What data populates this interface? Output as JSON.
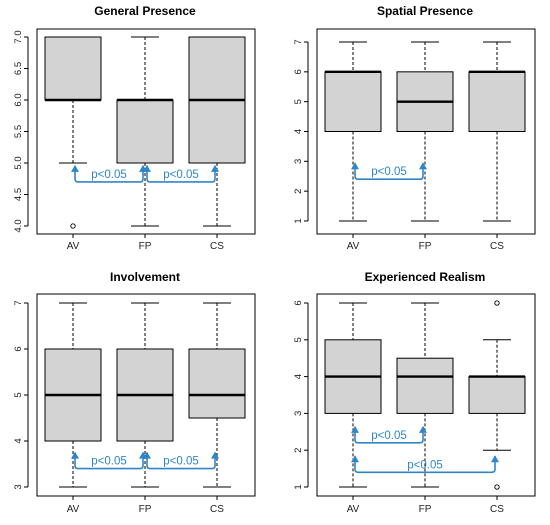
{
  "colors": {
    "box_fill": "#d3d3d3",
    "box_stroke": "#000000",
    "annotation": "#2e86c9"
  },
  "chart_data": [
    {
      "type": "boxplot",
      "title": "General Presence",
      "categories": [
        "AV",
        "FP",
        "CS"
      ],
      "ylim": [
        4.0,
        7.0
      ],
      "yticks": [
        "4.0",
        "4.5",
        "5.0",
        "5.5",
        "6.0",
        "6.5",
        "7.0"
      ],
      "ytick_values": [
        4.0,
        4.5,
        5.0,
        5.5,
        6.0,
        6.5,
        7.0
      ],
      "boxes": [
        {
          "q1": 6.0,
          "median": 6.0,
          "q3": 7.0,
          "whisker_low": 5.0,
          "whisker_high": 7.0,
          "outliers": [
            4.0
          ]
        },
        {
          "q1": 5.0,
          "median": 6.0,
          "q3": 6.0,
          "whisker_low": 4.0,
          "whisker_high": 7.0,
          "outliers": []
        },
        {
          "q1": 5.0,
          "median": 6.0,
          "q3": 7.0,
          "whisker_low": 4.0,
          "whisker_high": 7.0,
          "outliers": []
        }
      ],
      "annotations": [
        {
          "from": 0,
          "to": 1,
          "label": "p<0.05",
          "y": 4.7
        },
        {
          "from": 1,
          "to": 2,
          "label": "p<0.05",
          "y": 4.7
        }
      ]
    },
    {
      "type": "boxplot",
      "title": "Spatial Presence",
      "categories": [
        "AV",
        "FP",
        "CS"
      ],
      "ylim": [
        1,
        7
      ],
      "yticks": [
        "1",
        "2",
        "3",
        "4",
        "5",
        "6",
        "7"
      ],
      "ytick_values": [
        1,
        2,
        3,
        4,
        5,
        6,
        7
      ],
      "boxes": [
        {
          "q1": 4,
          "median": 6,
          "q3": 6,
          "whisker_low": 1,
          "whisker_high": 7,
          "outliers": []
        },
        {
          "q1": 4,
          "median": 5,
          "q3": 6,
          "whisker_low": 1,
          "whisker_high": 7,
          "outliers": []
        },
        {
          "q1": 4,
          "median": 6,
          "q3": 6,
          "whisker_low": 1,
          "whisker_high": 7,
          "outliers": []
        }
      ],
      "annotations": [
        {
          "from": 0,
          "to": 1,
          "label": "p<0.05",
          "y": 2.4
        }
      ]
    },
    {
      "type": "boxplot",
      "title": "Involvement",
      "categories": [
        "AV",
        "FP",
        "CS"
      ],
      "ylim": [
        3,
        7
      ],
      "yticks": [
        "3",
        "4",
        "5",
        "6",
        "7"
      ],
      "ytick_values": [
        3,
        4,
        5,
        6,
        7
      ],
      "boxes": [
        {
          "q1": 4,
          "median": 5,
          "q3": 6,
          "whisker_low": 3,
          "whisker_high": 7,
          "outliers": []
        },
        {
          "q1": 4,
          "median": 5,
          "q3": 6,
          "whisker_low": 3,
          "whisker_high": 7,
          "outliers": []
        },
        {
          "q1": 4.5,
          "median": 5,
          "q3": 6,
          "whisker_low": 3,
          "whisker_high": 7,
          "outliers": []
        }
      ],
      "annotations": [
        {
          "from": 0,
          "to": 1,
          "label": "p<0.05",
          "y": 3.4
        },
        {
          "from": 1,
          "to": 2,
          "label": "p<0.05",
          "y": 3.4
        }
      ]
    },
    {
      "type": "boxplot",
      "title": "Experienced Realism",
      "categories": [
        "AV",
        "FP",
        "CS"
      ],
      "ylim": [
        1,
        6
      ],
      "yticks": [
        "1",
        "2",
        "3",
        "4",
        "5",
        "6"
      ],
      "ytick_values": [
        1,
        2,
        3,
        4,
        5,
        6
      ],
      "boxes": [
        {
          "q1": 3,
          "median": 4,
          "q3": 5,
          "whisker_low": 1,
          "whisker_high": 6,
          "outliers": []
        },
        {
          "q1": 3,
          "median": 4,
          "q3": 4.5,
          "whisker_low": 1,
          "whisker_high": 6,
          "outliers": []
        },
        {
          "q1": 3,
          "median": 4,
          "q3": 4,
          "whisker_low": 2,
          "whisker_high": 5,
          "outliers": [
            6,
            1
          ]
        }
      ],
      "annotations": [
        {
          "from": 0,
          "to": 1,
          "label": "p<0.05",
          "y": 2.2
        },
        {
          "from": 0,
          "to": 2,
          "label": "p<0.05",
          "y": 1.4
        }
      ]
    }
  ]
}
